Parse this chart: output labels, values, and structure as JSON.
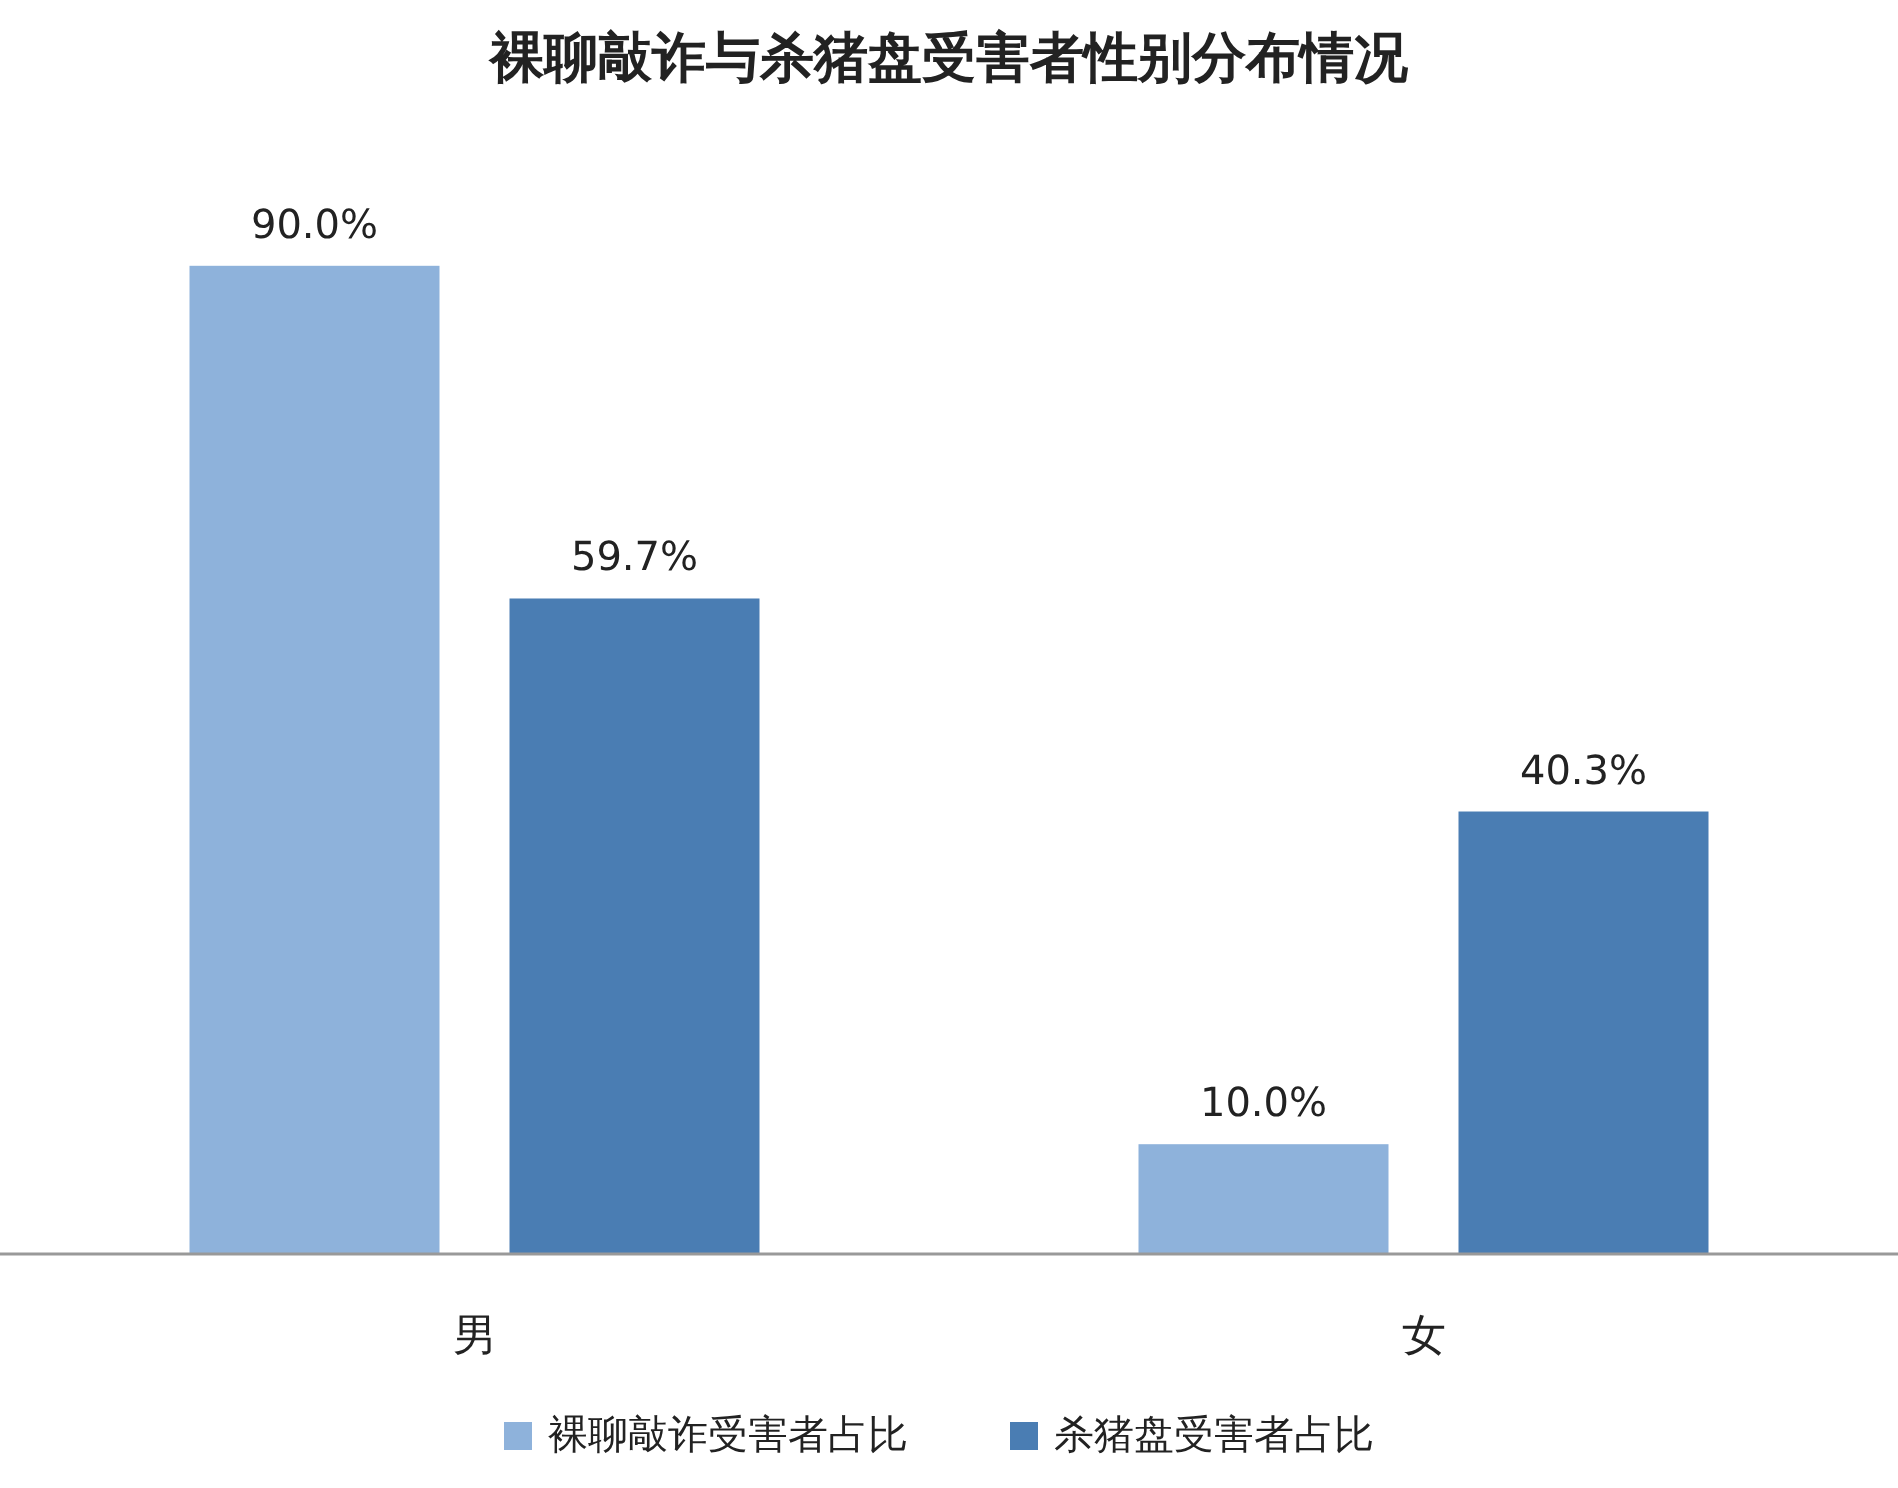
{
  "chart_data": {
    "type": "bar",
    "title": "裸聊敲诈与杀猪盘受害者性别分布情况",
    "categories": [
      "男",
      "女"
    ],
    "series": [
      {
        "name": "裸聊敲诈受害者占比",
        "color": "#8eb2db",
        "values": [
          90.0,
          10.0
        ],
        "value_labels": [
          "90.0%",
          "10.0%"
        ]
      },
      {
        "name": "杀猪盘受害者占比",
        "color": "#4a7db3",
        "values": [
          59.7,
          40.3
        ],
        "value_labels": [
          "59.7%",
          "40.3%"
        ]
      }
    ],
    "legend": "bottom"
  }
}
